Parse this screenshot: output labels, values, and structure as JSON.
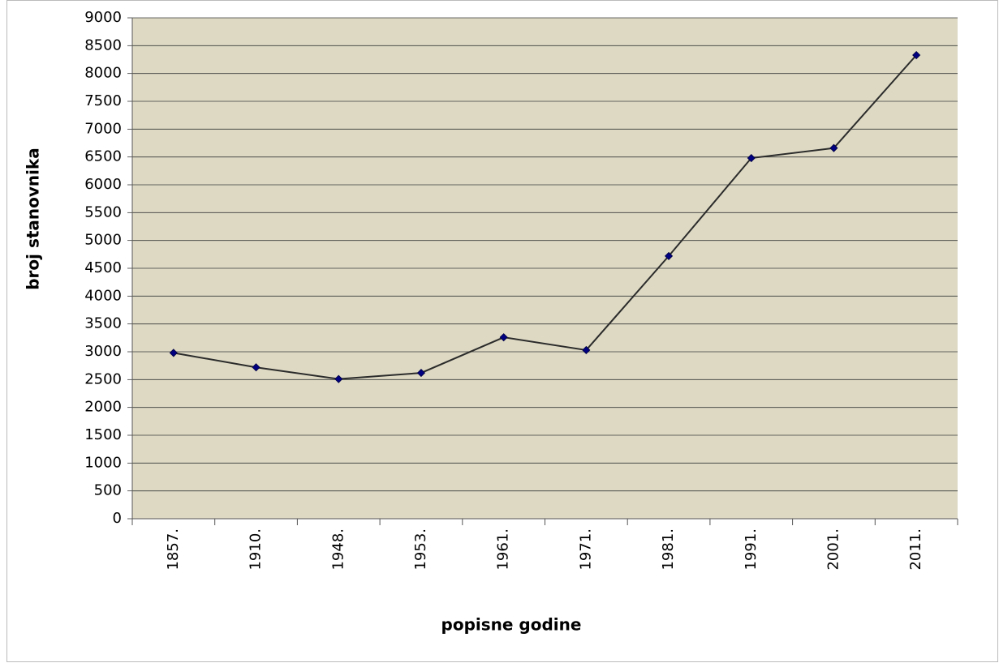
{
  "chart_data": {
    "type": "line",
    "y_label": "broj stanovnika",
    "x_label": "popisne godine",
    "categories": [
      "1857.",
      "1910.",
      "1948.",
      "1953.",
      "1961.",
      "1971.",
      "1981.",
      "1991.",
      "2001.",
      "2011."
    ],
    "series": [
      {
        "color": "#000080",
        "values": [
          2980,
          2720,
          2510,
          2620,
          3260,
          3030,
          4720,
          6480,
          6660,
          8330
        ]
      }
    ],
    "line_color": "#2b2b2b",
    "plot_background": "#ddd9c3",
    "ylim": [
      0,
      9000
    ],
    "yticks": [
      0,
      500,
      1000,
      1500,
      2000,
      2500,
      3000,
      3500,
      4000,
      4500,
      5000,
      5500,
      6000,
      6500,
      7000,
      7500,
      8000,
      8500,
      9000
    ],
    "grid": true
  }
}
